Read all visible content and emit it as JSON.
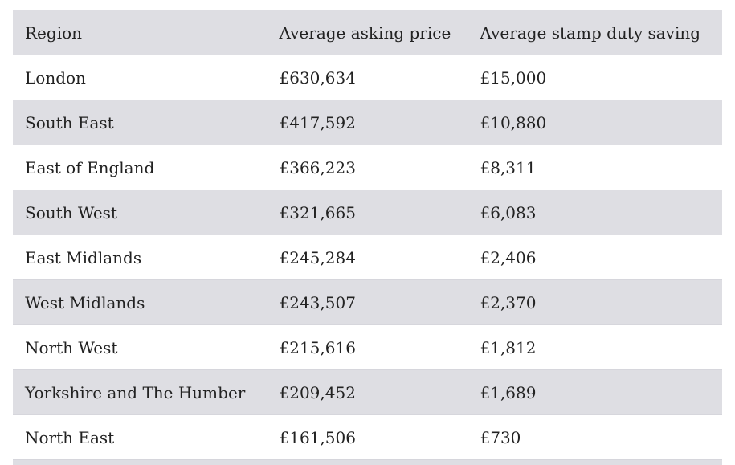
{
  "table": {
    "headers": [
      "Region",
      "Average asking price",
      "Average stamp duty saving"
    ],
    "rows": [
      [
        "London",
        "£630,634",
        "£15,000"
      ],
      [
        "South East",
        "£417,592",
        "£10,880"
      ],
      [
        "East of England",
        "£366,223",
        "£8,311"
      ],
      [
        "South West",
        "£321,665",
        "£6,083"
      ],
      [
        "East Midlands",
        "£245,284",
        "£2,406"
      ],
      [
        "West Midlands",
        "£243,507",
        "£2,370"
      ],
      [
        "North West",
        "£215,616",
        "£1,812"
      ],
      [
        "Yorkshire and The Humber",
        "£209,452",
        "£1,689"
      ],
      [
        "North East",
        "£161,506",
        "£730"
      ]
    ]
  },
  "colors": {
    "header_bg": "#dedee3",
    "stripe_bg": "#dedee3",
    "row_bg": "#ffffff",
    "border": "#d6d6dc",
    "text": "#222222"
  }
}
